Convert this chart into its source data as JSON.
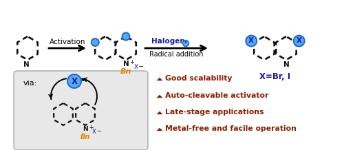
{
  "bg_color": "#ffffff",
  "bullet_color": "#8B1A00",
  "blue_dark": "#1919A0",
  "blue_circle_face": "#55AAEE",
  "blue_circle_edge": "#2266CC",
  "orange": "#E88000",
  "black": "#111111",
  "gray_box_face": "#E8E8E8",
  "gray_box_edge": "#AAAAAA",
  "bullet_items": [
    "Good scalability",
    "Auto-cleavable activator",
    "Late-stage applications",
    "Metal-free and facile operation"
  ],
  "arrow1_label": "Activation",
  "arrow2_label_top": "Halogen",
  "arrow2_label_bot": "Radical addition",
  "product_label": "X=Br, I",
  "via_label": "via:",
  "Bn_label": "Bn"
}
